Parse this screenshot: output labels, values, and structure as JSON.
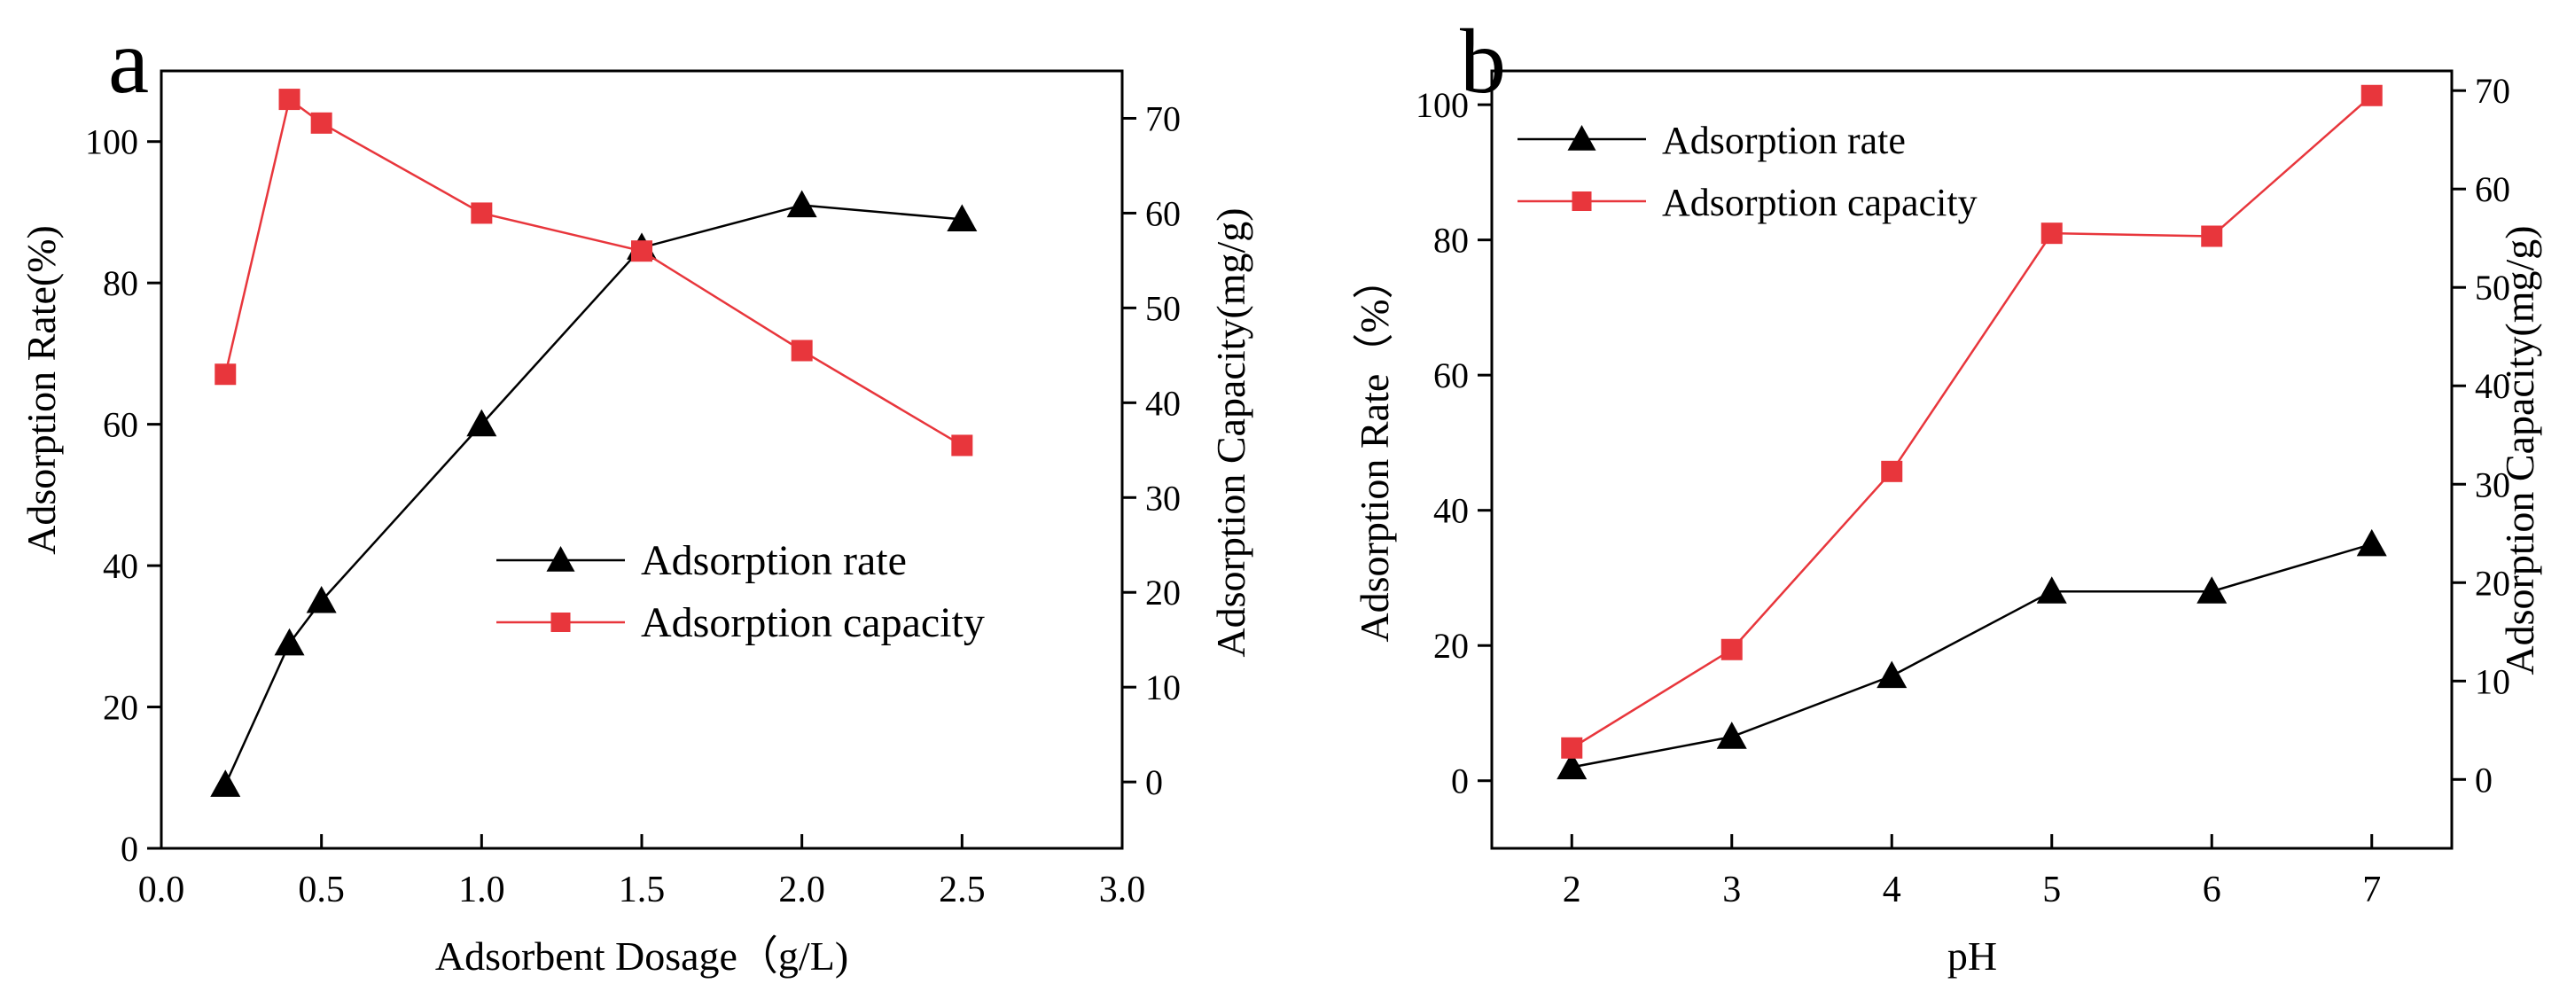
{
  "panels": [
    {
      "letter": "a"
    },
    {
      "letter": "b"
    }
  ],
  "colors": {
    "rate": "#000000",
    "capacity": "#e8363c",
    "axis": "#000000"
  },
  "chart_data": [
    {
      "type": "line",
      "panel": "a",
      "title": "",
      "xlabel": "Adsorbent Dosage（g/L)",
      "ylabel": "Adsorption Rate(%)",
      "y2label": "Adsorption Capacity(mg/g)",
      "xlim": [
        0.0,
        3.0
      ],
      "ylim": [
        0,
        110
      ],
      "y2lim": [
        -7,
        75
      ],
      "xticks": [
        "0.0",
        "0.5",
        "1.0",
        "1.5",
        "2.0",
        "2.5",
        "3.0"
      ],
      "yticks": [
        "0",
        "20",
        "40",
        "60",
        "80",
        "100"
      ],
      "y2ticks": [
        "0",
        "10",
        "20",
        "30",
        "40",
        "50",
        "60",
        "70"
      ],
      "legend": "center-right",
      "series": [
        {
          "name": "Adsorption rate",
          "axis": "left",
          "marker": "triangle",
          "x": [
            0.2,
            0.4,
            0.5,
            1.0,
            1.5,
            2.0,
            2.5
          ],
          "values": [
            9,
            29,
            35,
            60,
            85,
            91,
            89
          ]
        },
        {
          "name": "Adsorption capacity",
          "axis": "right",
          "marker": "square",
          "x": [
            0.2,
            0.4,
            0.5,
            1.0,
            1.5,
            2.0,
            2.5
          ],
          "values": [
            43,
            72,
            69.5,
            60,
            56,
            45.5,
            35.5
          ]
        }
      ]
    },
    {
      "type": "line",
      "panel": "b",
      "title": "",
      "xlabel": "pH",
      "ylabel": "Adsorption Rate（%）",
      "y2label": "Adsorption Capacity(mg/g)",
      "xlim": [
        1.5,
        7.5
      ],
      "ylim": [
        -10,
        105
      ],
      "y2lim": [
        -7,
        72
      ],
      "xticks": [
        "2",
        "3",
        "4",
        "5",
        "6",
        "7"
      ],
      "yticks": [
        "0",
        "20",
        "40",
        "60",
        "80",
        "100"
      ],
      "y2ticks": [
        "0",
        "10",
        "20",
        "30",
        "40",
        "50",
        "60",
        "70"
      ],
      "legend": "top-left",
      "series": [
        {
          "name": "Adsorption rate",
          "axis": "left",
          "marker": "triangle",
          "x": [
            2,
            3,
            4,
            5,
            6,
            7
          ],
          "values": [
            2,
            6.5,
            15.5,
            28,
            28,
            35
          ]
        },
        {
          "name": "Adsorption capacity",
          "axis": "right",
          "marker": "square",
          "x": [
            2,
            3,
            4,
            5,
            6,
            7
          ],
          "values": [
            3.2,
            13.2,
            31.3,
            55.5,
            55.2,
            69.5
          ]
        }
      ]
    }
  ]
}
